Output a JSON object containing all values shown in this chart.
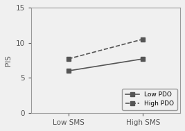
{
  "x_labels": [
    "Low SMS",
    "High SMS"
  ],
  "x_positions": [
    1,
    2
  ],
  "low_pdo": [
    6.0,
    7.7
  ],
  "high_pdo": [
    7.7,
    10.5
  ],
  "low_pdo_label": "Low PDO",
  "high_pdo_label": "High PDO",
  "ylabel": "PIS",
  "ylim": [
    0,
    15
  ],
  "yticks": [
    0,
    5,
    10,
    15
  ],
  "line_color": "#555555",
  "bg_color": "#f0f0f0",
  "plot_bg_color": "#f0f0f0",
  "marker": "s",
  "fontsize": 7.5,
  "legend_fontsize": 6.5,
  "spine_color": "#999999"
}
